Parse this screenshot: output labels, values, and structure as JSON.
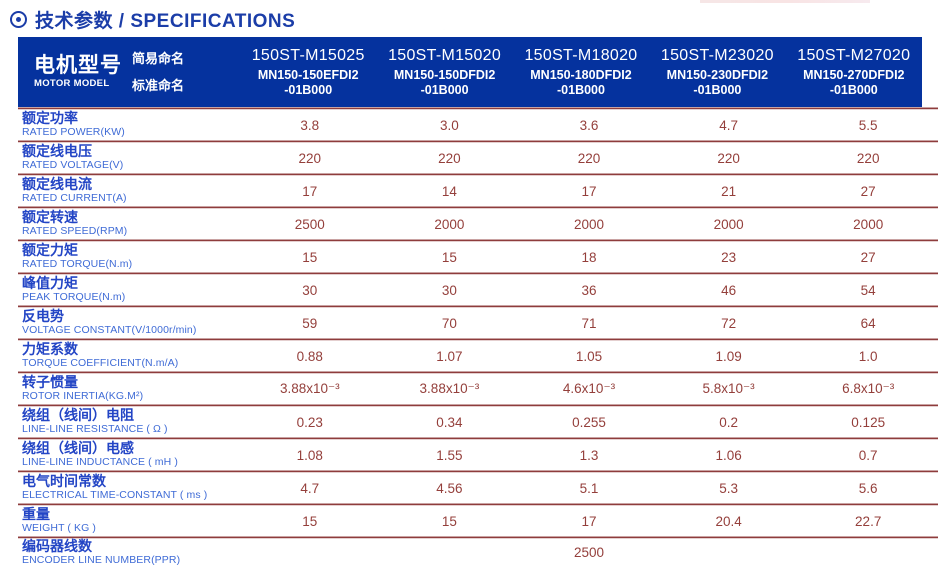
{
  "page": {
    "title": "技术参数 / SPECIFICATIONS"
  },
  "colors": {
    "header_bg": "#05329e",
    "title_text": "#1b3da8",
    "label_zh": "#2345c5",
    "label_en": "#3f6bd6",
    "value_text": "#943f3b",
    "divider_dark": "#8e3c3c",
    "divider_light": "#c9a2a2"
  },
  "table": {
    "model_header": {
      "title_zh": "电机型号",
      "title_en": "MOTOR MODEL",
      "simple_label": "简易命名",
      "standard_label": "标准命名"
    },
    "columns": [
      {
        "simple": "150ST-M15025",
        "standard_line1": "MN150-150EFDI2",
        "standard_line2": "-01B000"
      },
      {
        "simple": "150ST-M15020",
        "standard_line1": "MN150-150DFDI2",
        "standard_line2": "-01B000"
      },
      {
        "simple": "150ST-M18020",
        "standard_line1": "MN150-180DFDI2",
        "standard_line2": "-01B000"
      },
      {
        "simple": "150ST-M23020",
        "standard_line1": "MN150-230DFDI2",
        "standard_line2": "-01B000"
      },
      {
        "simple": "150ST-M27020",
        "standard_line1": "MN150-270DFDI2",
        "standard_line2": "-01B000"
      }
    ],
    "rows": [
      {
        "zh": "额定功率",
        "en": "RATED POWER(KW)",
        "values": [
          "3.8",
          "3.0",
          "3.6",
          "4.7",
          "5.5"
        ]
      },
      {
        "zh": "额定线电压",
        "en": "RATED VOLTAGE(V)",
        "values": [
          "220",
          "220",
          "220",
          "220",
          "220"
        ]
      },
      {
        "zh": "额定线电流",
        "en": "RATED CURRENT(A)",
        "values": [
          "17",
          "14",
          "17",
          "21",
          "27"
        ]
      },
      {
        "zh": "额定转速",
        "en": "RATED SPEED(RPM)",
        "values": [
          "2500",
          "2000",
          "2000",
          "2000",
          "2000"
        ]
      },
      {
        "zh": "额定力矩",
        "en": "RATED TORQUE(N.m)",
        "values": [
          "15",
          "15",
          "18",
          "23",
          "27"
        ]
      },
      {
        "zh": "峰值力矩",
        "en": "PEAK TORQUE(N.m)",
        "values": [
          "30",
          "30",
          "36",
          "46",
          "54"
        ]
      },
      {
        "zh": "反电势",
        "en": "VOLTAGE CONSTANT(V/1000r/min)",
        "values": [
          "59",
          "70",
          "71",
          "72",
          "64"
        ]
      },
      {
        "zh": "力矩系数",
        "en": "TORQUE COEFFICIENT(N.m/A)",
        "values": [
          "0.88",
          "1.07",
          "1.05",
          "1.09",
          "1.0"
        ]
      },
      {
        "zh": "转子惯量",
        "en": "ROTOR INERTIA(KG.M²)",
        "values": [
          "3.88x10⁻³",
          "3.88x10⁻³",
          "4.6x10⁻³",
          "5.8x10⁻³",
          "6.8x10⁻³"
        ]
      },
      {
        "zh": "绕组（线间）电阻",
        "en": "LINE-LINE RESISTANCE ( Ω )",
        "values": [
          "0.23",
          "0.34",
          "0.255",
          "0.2",
          "0.125"
        ]
      },
      {
        "zh": "绕组（线间）电感",
        "en": "LINE-LINE INDUCTANCE ( mH )",
        "values": [
          "1.08",
          "1.55",
          "1.3",
          "1.06",
          "0.7"
        ]
      },
      {
        "zh": "电气时间常数",
        "en": "ELECTRICAL TIME-CONSTANT ( ms )",
        "values": [
          "4.7",
          "4.56",
          "5.1",
          "5.3",
          "5.6"
        ]
      },
      {
        "zh": "重量",
        "en": "WEIGHT ( KG )",
        "values": [
          "15",
          "15",
          "17",
          "20.4",
          "22.7"
        ]
      }
    ],
    "merged_row": {
      "zh": "编码器线数",
      "en": "ENCODER LINE NUMBER(PPR)",
      "value": "2500"
    }
  }
}
